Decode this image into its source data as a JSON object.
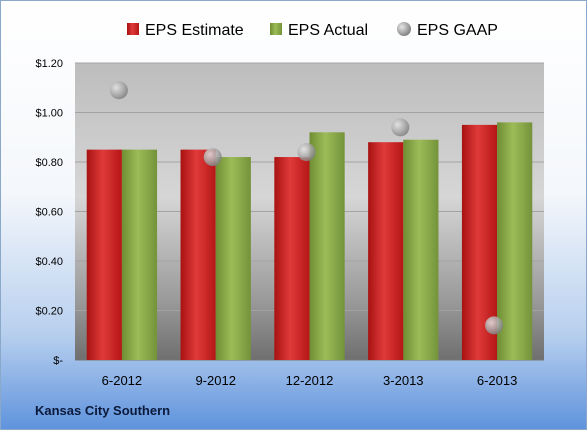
{
  "chart_data": {
    "type": "bar",
    "categories": [
      "6-2012",
      "9-2012",
      "12-2012",
      "3-2013",
      "6-2013"
    ],
    "series": [
      {
        "name": "EPS Estimate",
        "kind": "bar",
        "color": "#cc1f1f",
        "values": [
          0.85,
          0.85,
          0.82,
          0.88,
          0.95
        ]
      },
      {
        "name": "EPS Actual",
        "kind": "bar",
        "color": "#8bab46",
        "values": [
          0.85,
          0.82,
          0.92,
          0.89,
          0.96
        ]
      },
      {
        "name": "EPS GAAP",
        "kind": "scatter",
        "color": "#a9a9a9",
        "values": [
          1.09,
          0.82,
          0.84,
          0.94,
          0.14
        ]
      }
    ],
    "ylim": [
      0,
      1.2
    ],
    "yticks": [
      0,
      0.2,
      0.4,
      0.6,
      0.8,
      1.0,
      1.2
    ],
    "ytick_labels": [
      "$-",
      "$0.20",
      "$0.40",
      "$0.60",
      "$0.80",
      "$1.00",
      "$1.20"
    ],
    "legend_position": "top",
    "grid": true
  },
  "footer_text": "Kansas City Southern"
}
